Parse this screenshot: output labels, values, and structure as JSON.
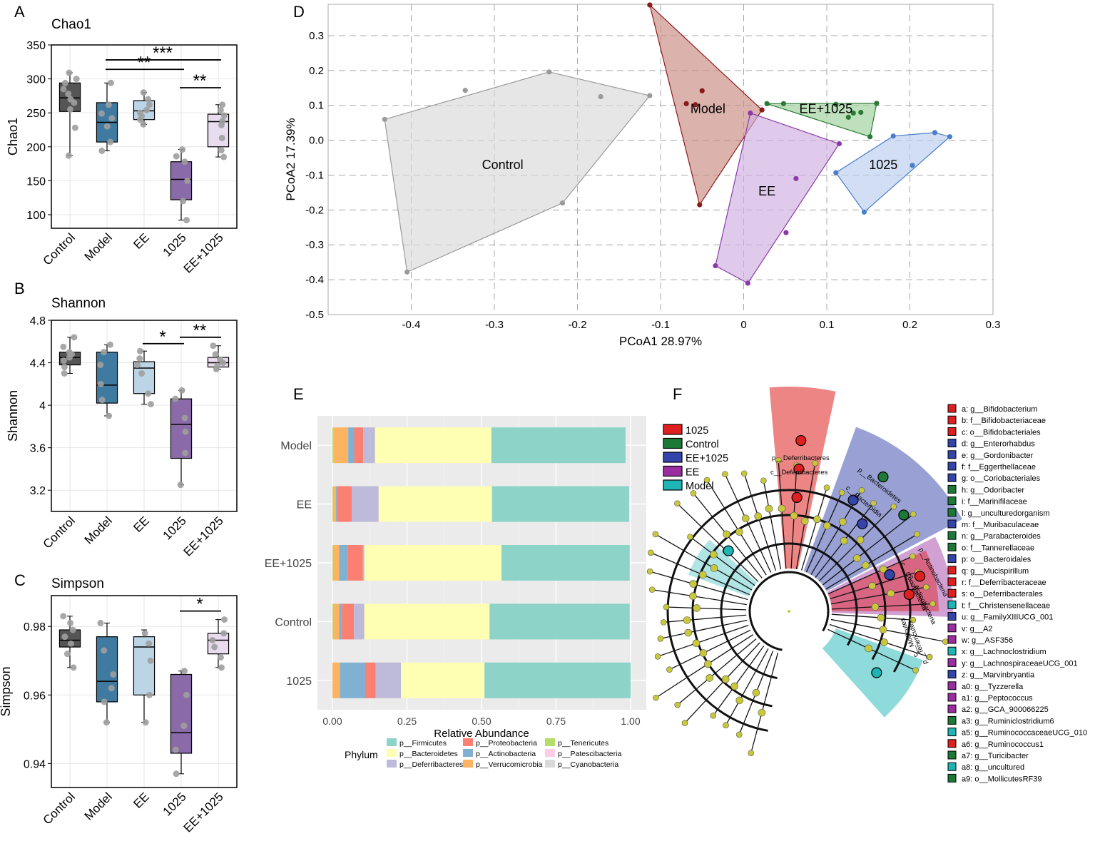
{
  "figure": {
    "panel_letters": [
      "A",
      "B",
      "C",
      "D",
      "E",
      "F"
    ]
  },
  "chart_data": [
    {
      "id": "A",
      "type": "box",
      "title": "Chao1",
      "ylabel": "Chao1",
      "ylim": [
        80,
        350
      ],
      "yticks": [
        100,
        150,
        200,
        250,
        300,
        350
      ],
      "categories": [
        "Control",
        "Model",
        "EE",
        "1025",
        "EE+1025"
      ],
      "colors": [
        "#555555",
        "#3f7aa0",
        "#bcd5e6",
        "#8a6aa8",
        "#e8dcee"
      ],
      "boxes": [
        {
          "min": 187,
          "q1": 252,
          "median": 272,
          "q3": 294,
          "max": 309,
          "points": [
            187,
            228,
            255,
            265,
            270,
            278,
            285,
            294,
            300,
            309
          ]
        },
        {
          "min": 194,
          "q1": 207,
          "median": 236,
          "q3": 265,
          "max": 294,
          "points": [
            194,
            207,
            230,
            242,
            249,
            262,
            294
          ]
        },
        {
          "min": 233,
          "q1": 240,
          "median": 253,
          "q3": 268,
          "max": 280,
          "points": [
            233,
            240,
            245,
            250,
            254,
            262,
            270,
            280
          ]
        },
        {
          "min": 92,
          "q1": 122,
          "median": 152,
          "q3": 178,
          "max": 196,
          "points": [
            92,
            120,
            150,
            178,
            186,
            196
          ]
        },
        {
          "min": 185,
          "q1": 200,
          "median": 237,
          "q3": 248,
          "max": 262,
          "points": [
            185,
            195,
            213,
            232,
            238,
            246,
            254,
            262
          ]
        }
      ],
      "sig": [
        {
          "from": 1,
          "to": 3,
          "label": "**",
          "y": 314
        },
        {
          "from": 1,
          "to": 4,
          "label": "***",
          "y": 328
        },
        {
          "from": 3,
          "to": 4,
          "label": "**",
          "y": 287
        }
      ]
    },
    {
      "id": "B",
      "type": "box",
      "title": "Shannon",
      "ylabel": "Shannon",
      "ylim": [
        3.0,
        4.8
      ],
      "yticks": [
        3.2,
        3.6,
        4.0,
        4.4,
        4.8
      ],
      "categories": [
        "Control",
        "Model",
        "EE",
        "1025",
        "EE+1025"
      ],
      "colors": [
        "#555555",
        "#3f7aa0",
        "#bcd5e6",
        "#8a6aa8",
        "#e8dcee"
      ],
      "boxes": [
        {
          "min": 4.3,
          "q1": 4.38,
          "median": 4.45,
          "q3": 4.5,
          "max": 4.64,
          "points": [
            4.3,
            4.36,
            4.42,
            4.45,
            4.48,
            4.5,
            4.55,
            4.64
          ]
        },
        {
          "min": 3.9,
          "q1": 4.02,
          "median": 4.19,
          "q3": 4.5,
          "max": 4.57,
          "points": [
            3.9,
            4.05,
            4.2,
            4.38,
            4.5,
            4.57
          ]
        },
        {
          "min": 4.01,
          "q1": 4.11,
          "median": 4.35,
          "q3": 4.41,
          "max": 4.51,
          "points": [
            4.01,
            4.11,
            4.3,
            4.38,
            4.44,
            4.51
          ]
        },
        {
          "min": 3.25,
          "q1": 3.5,
          "median": 3.82,
          "q3": 4.06,
          "max": 4.14,
          "points": [
            3.25,
            3.55,
            3.75,
            3.88,
            4.06,
            4.14
          ]
        },
        {
          "min": 4.34,
          "q1": 4.36,
          "median": 4.4,
          "q3": 4.45,
          "max": 4.56,
          "points": [
            4.34,
            4.37,
            4.4,
            4.43,
            4.48,
            4.56
          ]
        }
      ],
      "sig": [
        {
          "from": 2,
          "to": 3,
          "label": "*",
          "y": 4.58
        },
        {
          "from": 3,
          "to": 4,
          "label": "**",
          "y": 4.64
        }
      ]
    },
    {
      "id": "C",
      "type": "box",
      "title": "Simpson",
      "ylabel": "Simpson",
      "ylim": [
        0.933,
        0.989
      ],
      "yticks": [
        0.94,
        0.96,
        0.98
      ],
      "categories": [
        "Control",
        "Model",
        "EE",
        "1025",
        "EE+1025"
      ],
      "colors": [
        "#555555",
        "#3f7aa0",
        "#bcd5e6",
        "#8a6aa8",
        "#e8dcee"
      ],
      "boxes": [
        {
          "min": 0.968,
          "q1": 0.974,
          "median": 0.976,
          "q3": 0.979,
          "max": 0.983,
          "points": [
            0.968,
            0.972,
            0.975,
            0.977,
            0.979,
            0.981,
            0.983
          ]
        },
        {
          "min": 0.952,
          "q1": 0.958,
          "median": 0.964,
          "q3": 0.977,
          "max": 0.981,
          "points": [
            0.952,
            0.958,
            0.962,
            0.966,
            0.973,
            0.981
          ]
        },
        {
          "min": 0.952,
          "q1": 0.96,
          "median": 0.974,
          "q3": 0.977,
          "max": 0.979,
          "points": [
            0.952,
            0.96,
            0.97,
            0.975,
            0.978
          ]
        },
        {
          "min": 0.937,
          "q1": 0.943,
          "median": 0.949,
          "q3": 0.966,
          "max": 0.967,
          "points": [
            0.937,
            0.944,
            0.951,
            0.96,
            0.967
          ]
        },
        {
          "min": 0.968,
          "q1": 0.972,
          "median": 0.976,
          "q3": 0.978,
          "max": 0.982,
          "points": [
            0.968,
            0.971,
            0.974,
            0.976,
            0.978,
            0.982
          ]
        }
      ],
      "sig": [
        {
          "from": 3,
          "to": 4,
          "label": "*",
          "y": 0.9845
        }
      ]
    },
    {
      "id": "D",
      "type": "scatter",
      "xlabel": "PCoA1 28.97%",
      "ylabel": "PCoA2 17.39%",
      "xlim": [
        -0.5,
        0.3
      ],
      "ylim": [
        -0.5,
        0.39
      ],
      "xticks": [
        -0.4,
        -0.3,
        -0.2,
        -0.1,
        0.0,
        0.1,
        0.2,
        0.3
      ],
      "yticks": [
        -0.5,
        -0.4,
        -0.3,
        -0.2,
        -0.1,
        0.0,
        0.1,
        0.2,
        0.3
      ],
      "xtick_labels": [
        "-0.4",
        "-0.3",
        "-0.2",
        "-0.1",
        "0",
        "0.1",
        "0.2",
        "0.3"
      ],
      "ytick_labels": [
        "-0.5",
        "-0.4",
        "-0.3",
        "-0.2",
        "-0.1",
        "0.0",
        "0.1",
        "0.2",
        "0.3"
      ],
      "groups": [
        {
          "name": "Control",
          "color": "#9a9a9a",
          "fill": "#d9d9d9",
          "points": [
            [
              -0.432,
              0.06
            ],
            [
              -0.335,
              0.143
            ],
            [
              -0.234,
              0.196
            ],
            [
              -0.172,
              0.125
            ],
            [
              -0.113,
              0.128
            ],
            [
              -0.218,
              -0.18
            ],
            [
              -0.405,
              -0.378
            ]
          ],
          "hull": [
            [
              -0.432,
              0.06
            ],
            [
              -0.234,
              0.196
            ],
            [
              -0.113,
              0.128
            ],
            [
              -0.218,
              -0.18
            ],
            [
              -0.405,
              -0.378
            ]
          ],
          "label_at": [
            -0.29,
            -0.083
          ]
        },
        {
          "name": "Model",
          "color": "#8b1a1a",
          "fill": "#c98a80",
          "points": [
            [
              -0.113,
              0.388
            ],
            [
              -0.069,
              0.105
            ],
            [
              -0.058,
              0.102
            ],
            [
              -0.05,
              0.142
            ],
            [
              0.022,
              0.087
            ],
            [
              -0.053,
              -0.185
            ]
          ],
          "hull": [
            [
              -0.113,
              0.388
            ],
            [
              0.022,
              0.087
            ],
            [
              -0.053,
              -0.185
            ]
          ],
          "label_at": [
            -0.043,
            0.078
          ]
        },
        {
          "name": "EE+1025",
          "color": "#2a7a35",
          "fill": "#9ccf9a",
          "points": [
            [
              0.028,
              0.105
            ],
            [
              0.048,
              0.105
            ],
            [
              0.111,
              0.103
            ],
            [
              0.126,
              0.066
            ],
            [
              0.132,
              0.078
            ],
            [
              0.141,
              0.08
            ],
            [
              0.16,
              0.106
            ],
            [
              0.152,
              0.01
            ]
          ],
          "hull": [
            [
              0.028,
              0.105
            ],
            [
              0.16,
              0.106
            ],
            [
              0.152,
              0.01
            ]
          ],
          "label_at": [
            0.099,
            0.078
          ]
        },
        {
          "name": "EE",
          "color": "#8a3aa6",
          "fill": "#cfaee0",
          "points": [
            [
              0.008,
              0.078
            ],
            [
              0.115,
              -0.01
            ],
            [
              0.063,
              -0.11
            ],
            [
              0.051,
              -0.265
            ],
            [
              -0.034,
              -0.36
            ],
            [
              0.005,
              -0.41
            ]
          ],
          "hull": [
            [
              0.008,
              0.078
            ],
            [
              0.115,
              -0.01
            ],
            [
              0.005,
              -0.41
            ],
            [
              -0.034,
              -0.36
            ]
          ],
          "label_at": [
            0.028,
            -0.158
          ]
        },
        {
          "name": "1025",
          "color": "#4a7ecb",
          "fill": "#b9cdee",
          "points": [
            [
              0.18,
              0.012
            ],
            [
              0.23,
              0.022
            ],
            [
              0.248,
              0.01
            ],
            [
              0.203,
              -0.072
            ],
            [
              0.111,
              -0.093
            ],
            [
              0.145,
              -0.206
            ]
          ],
          "hull": [
            [
              0.18,
              0.012
            ],
            [
              0.23,
              0.022
            ],
            [
              0.248,
              0.01
            ],
            [
              0.145,
              -0.206
            ],
            [
              0.111,
              -0.093
            ]
          ],
          "label_at": [
            0.168,
            -0.083
          ]
        }
      ]
    },
    {
      "id": "E",
      "type": "stacked-bar-horizontal",
      "xlabel": "Relative Abundance",
      "xlim": [
        0,
        1
      ],
      "xticks": [
        0,
        0.25,
        0.5,
        0.75,
        1.0
      ],
      "xtick_labels": [
        "0.00",
        "0.25",
        "0.50",
        "0.75",
        "1.00"
      ],
      "categories": [
        "Model",
        "EE",
        "EE+1025",
        "Control",
        "1025"
      ],
      "legend_title": "Phylum",
      "series": [
        {
          "name": "p__Firmicutes",
          "color": "#8dd3c7",
          "values": [
            0.45,
            0.46,
            0.43,
            0.47,
            0.49
          ]
        },
        {
          "name": "p__Bacteroidetes",
          "color": "#ffffb3",
          "values": [
            0.39,
            0.38,
            0.46,
            0.42,
            0.28
          ]
        },
        {
          "name": "p__Deferribacteres",
          "color": "#bebada",
          "values": [
            0.04,
            0.09,
            0.005,
            0.035,
            0.085
          ]
        },
        {
          "name": "p__Proteobacteria",
          "color": "#fb8072",
          "values": [
            0.03,
            0.05,
            0.05,
            0.04,
            0.035
          ]
        },
        {
          "name": "p__Actinobacteria",
          "color": "#80b1d3",
          "values": [
            0.02,
            0.003,
            0.03,
            0.01,
            0.085
          ]
        },
        {
          "name": "p__Verrucomicrobia",
          "color": "#fdb462",
          "values": [
            0.05,
            0.01,
            0.02,
            0.02,
            0.025
          ]
        },
        {
          "name": "p__Tenericutes",
          "color": "#b3de69",
          "values": [
            0.003,
            0.002,
            0.002,
            0.002,
            0.0
          ]
        },
        {
          "name": "p__Patescibacteria",
          "color": "#fccde5",
          "values": [
            0.0,
            0.0,
            0.0,
            0.0,
            0.0
          ]
        },
        {
          "name": "p__Cyanobacteria",
          "color": "#d9d9d9",
          "values": [
            0.0,
            0.0,
            0.0,
            0.0,
            0.0
          ]
        }
      ]
    },
    {
      "id": "F",
      "type": "cladogram",
      "group_legend": [
        {
          "name": "1025",
          "color": "#e02020"
        },
        {
          "name": "Control",
          "color": "#1d7a36"
        },
        {
          "name": "EE+1025",
          "color": "#3344aa"
        },
        {
          "name": "EE",
          "color": "#9a2ea0"
        },
        {
          "name": "Model",
          "color": "#1fb5b5"
        }
      ],
      "clade_labels": [
        "p__Deferribacteres",
        "c__Deferribacteres",
        "p__Bacteroidetes",
        "c__Bacteroidia",
        "p__Actinobacteria",
        "c__Coriobacteriia",
        "c__Actinobacteria",
        "p__Tenericutes",
        "c__Mollicutes"
      ],
      "taxa": [
        {
          "key": "a",
          "label": "a: g__Bifidobacterium",
          "group": "1025"
        },
        {
          "key": "b",
          "label": "b: f__Bifidobacteriaceae",
          "group": "1025"
        },
        {
          "key": "c",
          "label": "c: o__Bifidobacteriales",
          "group": "1025"
        },
        {
          "key": "d",
          "label": "d: g__Enterorhabdus",
          "group": "EE+1025"
        },
        {
          "key": "e",
          "label": "e: g__Gordonibacter",
          "group": "EE+1025"
        },
        {
          "key": "f",
          "label": "f: f__Eggerthellaceae",
          "group": "EE+1025"
        },
        {
          "key": "g",
          "label": "g: o__Coriobacteriales",
          "group": "EE+1025"
        },
        {
          "key": "h",
          "label": "h: g__Odoribacter",
          "group": "Control"
        },
        {
          "key": "i",
          "label": "i: f__Marinifilaceae",
          "group": "Control"
        },
        {
          "key": "l",
          "label": "l: g__unculturedorganism",
          "group": "Control"
        },
        {
          "key": "m",
          "label": "m: f__Muribaculaceae",
          "group": "EE+1025"
        },
        {
          "key": "n",
          "label": "n: g__Parabacteroides",
          "group": "Control"
        },
        {
          "key": "o",
          "label": "o: f__Tannerellaceae",
          "group": "Control"
        },
        {
          "key": "p",
          "label": "p: o__Bacteroidales",
          "group": "EE+1025"
        },
        {
          "key": "q",
          "label": "q: g__Mucispirillum",
          "group": "1025"
        },
        {
          "key": "r",
          "label": "r: f__Deferribacteraceae",
          "group": "1025"
        },
        {
          "key": "s",
          "label": "s: o__Deferribacterales",
          "group": "1025"
        },
        {
          "key": "t",
          "label": "t: f__Christensenellaceae",
          "group": "Model"
        },
        {
          "key": "u",
          "label": "u: g__FamilyXIIIUCG_001",
          "group": "EE+1025"
        },
        {
          "key": "v",
          "label": "v: g__A2",
          "group": "EE"
        },
        {
          "key": "w",
          "label": "w: g__ASF356",
          "group": "EE"
        },
        {
          "key": "x",
          "label": "x: g__Lachnoclostridium",
          "group": "Model"
        },
        {
          "key": "y",
          "label": "y: g__LachnospiraceaeUCG_001",
          "group": "EE"
        },
        {
          "key": "z",
          "label": "z: g__Marvinbryantia",
          "group": "EE+1025"
        },
        {
          "key": "a0",
          "label": "a0: g__Tyzzerella",
          "group": "EE"
        },
        {
          "key": "a1",
          "label": "a1: g__Peptococcus",
          "group": "EE"
        },
        {
          "key": "a2",
          "label": "a2: g__GCA_900066225",
          "group": "EE"
        },
        {
          "key": "a3",
          "label": "a3: g__Ruminiclostridium6",
          "group": "Control"
        },
        {
          "key": "a5",
          "label": "a5: g__RuminococcaceaeUCG_010",
          "group": "Model"
        },
        {
          "key": "a6",
          "label": "a6: g__Ruminococcus1",
          "group": "1025"
        },
        {
          "key": "a7",
          "label": "a7: g__Turicibacter",
          "group": "Control"
        },
        {
          "key": "a8",
          "label": "a8: g__uncultured",
          "group": "Model"
        },
        {
          "key": "a9",
          "label": "a9: o__MollicutesRF39",
          "group": "Control"
        }
      ]
    }
  ]
}
